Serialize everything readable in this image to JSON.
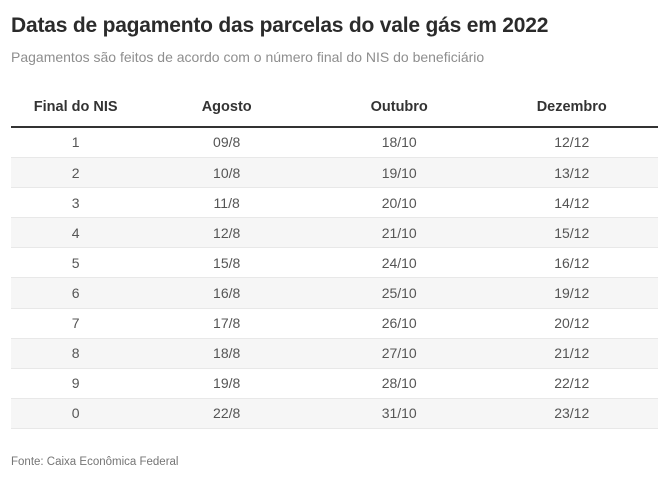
{
  "header": {
    "title": "Datas de pagamento das parcelas do vale gás em 2022",
    "subtitle": "Pagamentos são feitos de acordo com o número final do NIS do beneficiário"
  },
  "chart_data": {
    "type": "table",
    "title": "Datas de pagamento das parcelas do vale gás em 2022",
    "subtitle": "Pagamentos são feitos de acordo com o número final do NIS do beneficiário",
    "columns": [
      "Final do NIS",
      "Agosto",
      "Outubro",
      "Dezembro"
    ],
    "rows": [
      [
        "1",
        "09/8",
        "18/10",
        "12/12"
      ],
      [
        "2",
        "10/8",
        "19/10",
        "13/12"
      ],
      [
        "3",
        "11/8",
        "20/10",
        "14/12"
      ],
      [
        "4",
        "12/8",
        "21/10",
        "15/12"
      ],
      [
        "5",
        "15/8",
        "24/10",
        "16/12"
      ],
      [
        "6",
        "16/8",
        "25/10",
        "19/12"
      ],
      [
        "7",
        "17/8",
        "26/10",
        "20/12"
      ],
      [
        "8",
        "18/8",
        "27/10",
        "21/12"
      ],
      [
        "9",
        "19/8",
        "28/10",
        "22/12"
      ],
      [
        "0",
        "22/8",
        "31/10",
        "23/12"
      ]
    ],
    "layout": {
      "striped": true,
      "grid": false,
      "header_rule": true
    }
  },
  "footer": {
    "source": "Fonte: Caixa Econômica Federal"
  },
  "colors": {
    "title_text": "#2b2b2b",
    "subtitle_text": "#8e8e8e",
    "header_text": "#333333",
    "header_rule": "#333333",
    "cell_text": "#555555",
    "row_stripe": "#f6f6f6",
    "row_divider": "#e8e8e8",
    "source_text": "#757575",
    "background": "#ffffff"
  }
}
